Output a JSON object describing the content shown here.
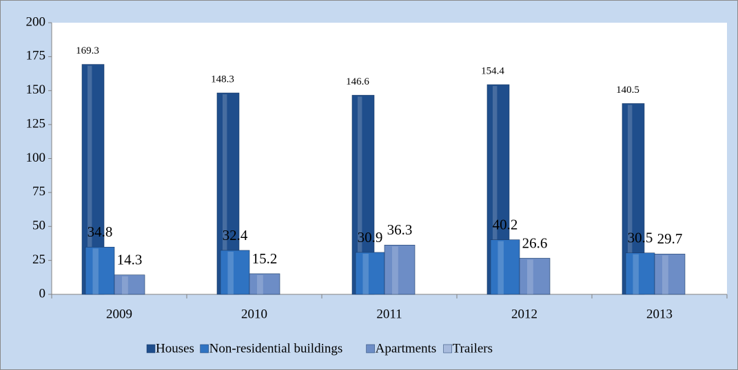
{
  "chart_data": {
    "type": "bar",
    "categories": [
      "2009",
      "2010",
      "2011",
      "2012",
      "2013"
    ],
    "series": [
      {
        "name": "Houses",
        "color": "#1f4e8c",
        "values": [
          169.3,
          148.3,
          146.6,
          154.4,
          140.5
        ]
      },
      {
        "name": "Non-residential buildings",
        "color": "#2f73c2",
        "values": [
          34.8,
          32.4,
          30.9,
          40.2,
          30.5
        ]
      },
      {
        "name": "Apartments",
        "color": "#6d8dc6",
        "values": [
          14.3,
          15.2,
          36.3,
          26.6,
          29.7
        ]
      },
      {
        "name": "Trailers",
        "color": "#a8bbdd",
        "values": [
          null,
          null,
          null,
          null,
          null
        ]
      }
    ],
    "ylim": [
      0,
      200
    ],
    "yticks": [
      0,
      25,
      50,
      75,
      100,
      125,
      150,
      175,
      200
    ],
    "legend": "bottom"
  }
}
